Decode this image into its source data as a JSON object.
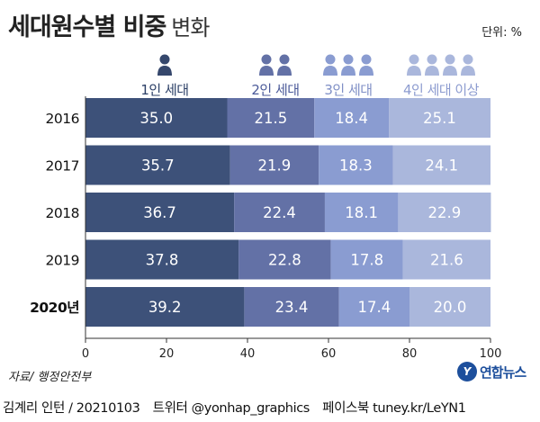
{
  "title": {
    "main": "세대원수별 비중",
    "sub": "변화"
  },
  "unit_label": "단위: %",
  "source_label": "자료/ 행정안전부",
  "logo": {
    "mark": "Y",
    "text": "연합뉴스"
  },
  "footer": {
    "author": "김계리 인턴 / 20210103",
    "twitter": "트위터 @yonhap_graphics",
    "facebook": "페이스북 tuney.kr/LeYN1"
  },
  "colors": {
    "series": [
      "#3d5179",
      "#6371a6",
      "#8a9cd1",
      "#aab7dc"
    ],
    "label_series": [
      "#2b3f66",
      "#4b5a99",
      "#7f8fc6",
      "#8d9cd0"
    ],
    "axis": "#333333",
    "grid": "#cfd4de"
  },
  "chart_data": {
    "type": "bar",
    "orientation": "horizontal",
    "stacked": true,
    "categories": [
      "2016",
      "2017",
      "2018",
      "2019",
      "2020년"
    ],
    "series": [
      {
        "name": "1인 세대",
        "icon_count": 1,
        "values": [
          35.0,
          35.7,
          36.7,
          37.8,
          39.2
        ]
      },
      {
        "name": "2인 세대",
        "icon_count": 2,
        "values": [
          21.5,
          21.9,
          22.4,
          22.8,
          23.4
        ]
      },
      {
        "name": "3인 세대",
        "icon_count": 3,
        "values": [
          18.4,
          18.3,
          18.1,
          17.8,
          17.4
        ]
      },
      {
        "name": "4인 세대 이상",
        "icon_count": 4,
        "values": [
          25.1,
          24.1,
          22.9,
          21.6,
          20.0
        ]
      }
    ],
    "value_labels": [
      [
        "35.0",
        "21.5",
        "18.4",
        "25.1"
      ],
      [
        "35.7",
        "21.9",
        "18.3",
        "24.1"
      ],
      [
        "36.7",
        "22.4",
        "18.1",
        "22.9"
      ],
      [
        "37.8",
        "22.8",
        "17.8",
        "21.6"
      ],
      [
        "39.2",
        "23.4",
        "17.4",
        "20.0"
      ]
    ],
    "xlim": [
      0,
      100
    ],
    "xticks": [
      0,
      20,
      40,
      60,
      80,
      100
    ],
    "grid": false,
    "legend_position": "top"
  }
}
